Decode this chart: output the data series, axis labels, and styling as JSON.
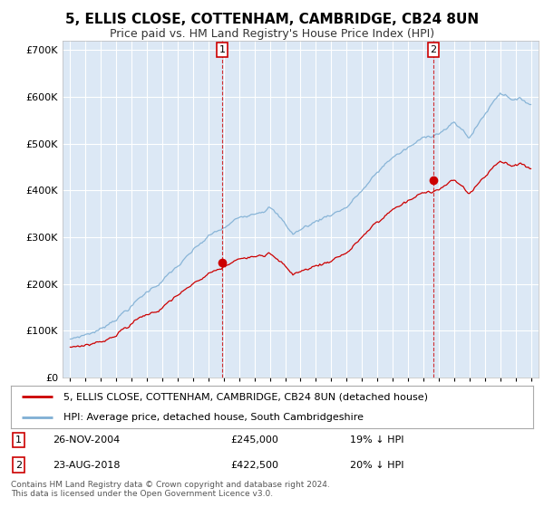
{
  "title": "5, ELLIS CLOSE, COTTENHAM, CAMBRIDGE, CB24 8UN",
  "subtitle": "Price paid vs. HM Land Registry's House Price Index (HPI)",
  "title_fontsize": 11,
  "subtitle_fontsize": 9,
  "background_color": "#ffffff",
  "plot_bg_color": "#dce8f5",
  "grid_color": "#ffffff",
  "ylim": [
    0,
    720000
  ],
  "yticks": [
    0,
    100000,
    200000,
    300000,
    400000,
    500000,
    600000,
    700000
  ],
  "legend_label_red": "5, ELLIS CLOSE, COTTENHAM, CAMBRIDGE, CB24 8UN (detached house)",
  "legend_label_blue": "HPI: Average price, detached house, South Cambridgeshire",
  "red_color": "#cc0000",
  "blue_color": "#7fafd4",
  "purchase1_date": "26-NOV-2004",
  "purchase1_price": "£245,000",
  "purchase1_note": "19% ↓ HPI",
  "purchase2_date": "23-AUG-2018",
  "purchase2_price": "£422,500",
  "purchase2_note": "20% ↓ HPI",
  "footer": "Contains HM Land Registry data © Crown copyright and database right 2024.\nThis data is licensed under the Open Government Licence v3.0.",
  "vline1_x": 2004.9,
  "vline2_x": 2018.65,
  "marker1_red_x": 2004.9,
  "marker1_red_y": 245000,
  "marker2_red_x": 2018.65,
  "marker2_red_y": 422500,
  "xmin": 1994.5,
  "xmax": 2025.5
}
